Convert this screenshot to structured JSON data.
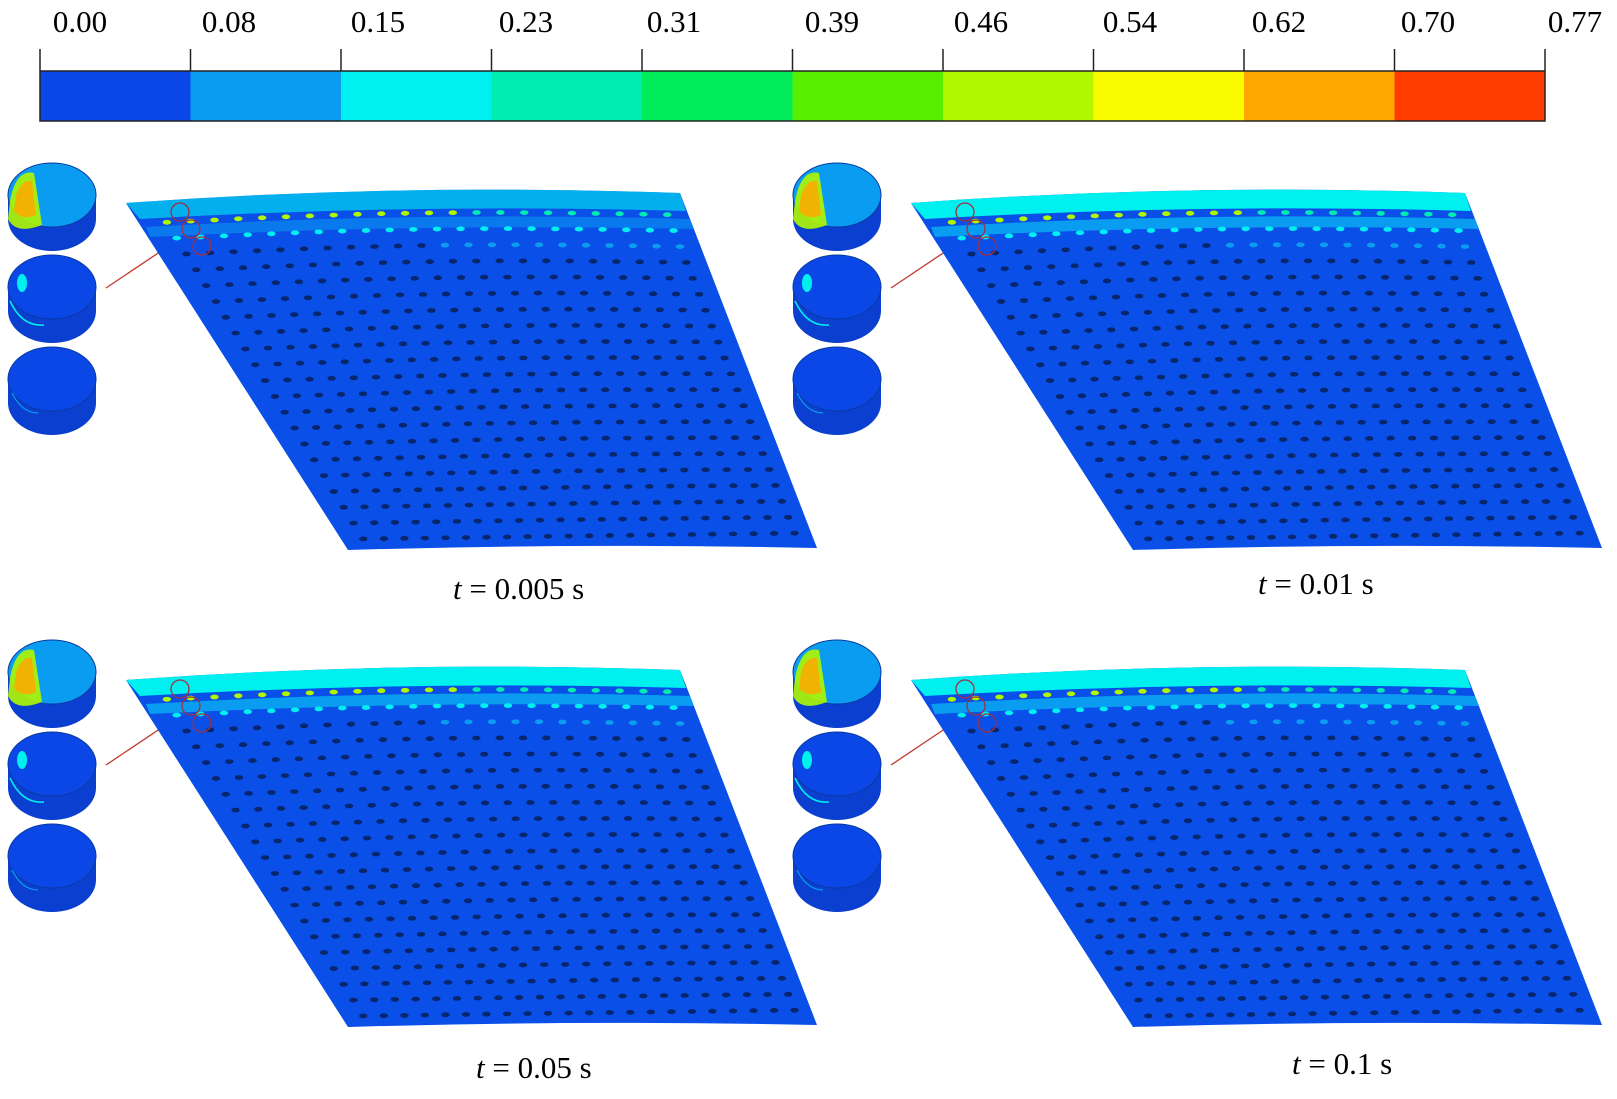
{
  "colorbar": {
    "ticks": [
      "0.00",
      "0.08",
      "0.15",
      "0.23",
      "0.31",
      "0.39",
      "0.46",
      "0.54",
      "0.62",
      "0.70",
      "0.77"
    ],
    "colors": [
      "#0a47e6",
      "#0a9cf0",
      "#00f0f0",
      "#00ecb0",
      "#00ec5a",
      "#58f000",
      "#b0f700",
      "#fafa00",
      "#ffa800",
      "#ff3c00"
    ]
  },
  "panels": [
    {
      "var": "t",
      "eq": " = ",
      "value": "0.005 s"
    },
    {
      "var": "t",
      "eq": " = ",
      "value": "0.01 s"
    },
    {
      "var": "t",
      "eq": " = ",
      "value": "0.05 s"
    },
    {
      "var": "t",
      "eq": " = ",
      "value": "0.1 s"
    }
  ]
}
